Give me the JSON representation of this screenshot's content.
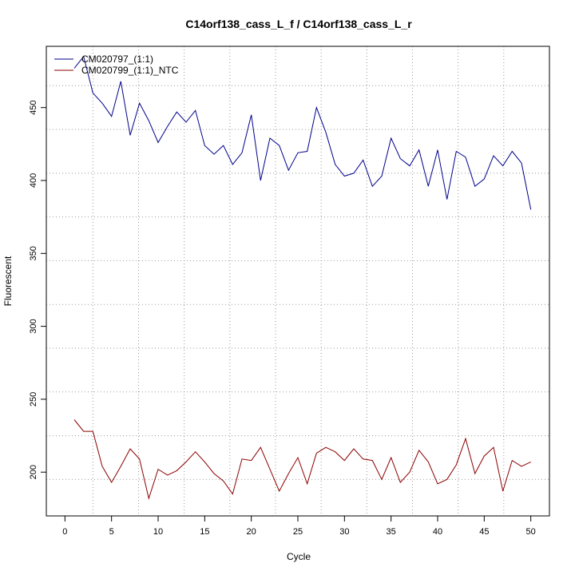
{
  "chart_data": {
    "type": "line",
    "title": "C14orf138_cass_L_f / C14orf138_cass_L_r",
    "xlabel": "Cycle",
    "ylabel": "Fluorescent",
    "xlim": [
      -2,
      52
    ],
    "ylim": [
      170,
      492
    ],
    "x_ticks": [
      0,
      5,
      10,
      15,
      20,
      25,
      30,
      35,
      40,
      45,
      50
    ],
    "y_ticks": [
      200,
      250,
      300,
      350,
      400,
      450
    ],
    "grid_h": [
      195,
      225,
      255,
      285,
      315,
      345,
      375,
      405,
      435,
      465
    ],
    "grid_v": [
      3,
      7.9,
      12.8,
      17.7,
      22.6,
      27.5,
      32.4,
      37.3,
      42.2,
      47.1
    ],
    "legend_position": "top-left",
    "colors": {
      "CM020797_(1:1)": "#00008B",
      "CM020799_(1:1)_NTC": "#8B0000",
      "grid": "#999999"
    },
    "x": [
      1,
      2,
      3,
      4,
      5,
      6,
      7,
      8,
      9,
      10,
      11,
      12,
      13,
      14,
      15,
      16,
      17,
      18,
      19,
      20,
      21,
      22,
      23,
      24,
      25,
      26,
      27,
      28,
      29,
      30,
      31,
      32,
      33,
      34,
      35,
      36,
      37,
      38,
      39,
      40,
      41,
      42,
      43,
      44,
      45,
      46,
      47,
      48,
      49,
      50
    ],
    "series": [
      {
        "name": "CM020797_(1:1)",
        "values": [
          477,
          485,
          460,
          453,
          444,
          468,
          431,
          453,
          441,
          426,
          437,
          447,
          440,
          448,
          424,
          418,
          424,
          411,
          419,
          445,
          400,
          429,
          424,
          407,
          419,
          420,
          450,
          433,
          411,
          403,
          405,
          414,
          396,
          403,
          429,
          415,
          410,
          421,
          396,
          421,
          387,
          420,
          416,
          396,
          401,
          417,
          410,
          420,
          412,
          380
        ]
      },
      {
        "name": "CM020799_(1:1)_NTC",
        "values": [
          236,
          228,
          228,
          204,
          193,
          204,
          216,
          209,
          182,
          202,
          198,
          201,
          207,
          214,
          207,
          199,
          194,
          185,
          209,
          208,
          217,
          202,
          187,
          199,
          210,
          192,
          213,
          217,
          214,
          208,
          216,
          209,
          208,
          195,
          210,
          193,
          200,
          215,
          207,
          192,
          195,
          205,
          223,
          199,
          211,
          217,
          187,
          208,
          204,
          207
        ]
      }
    ]
  }
}
